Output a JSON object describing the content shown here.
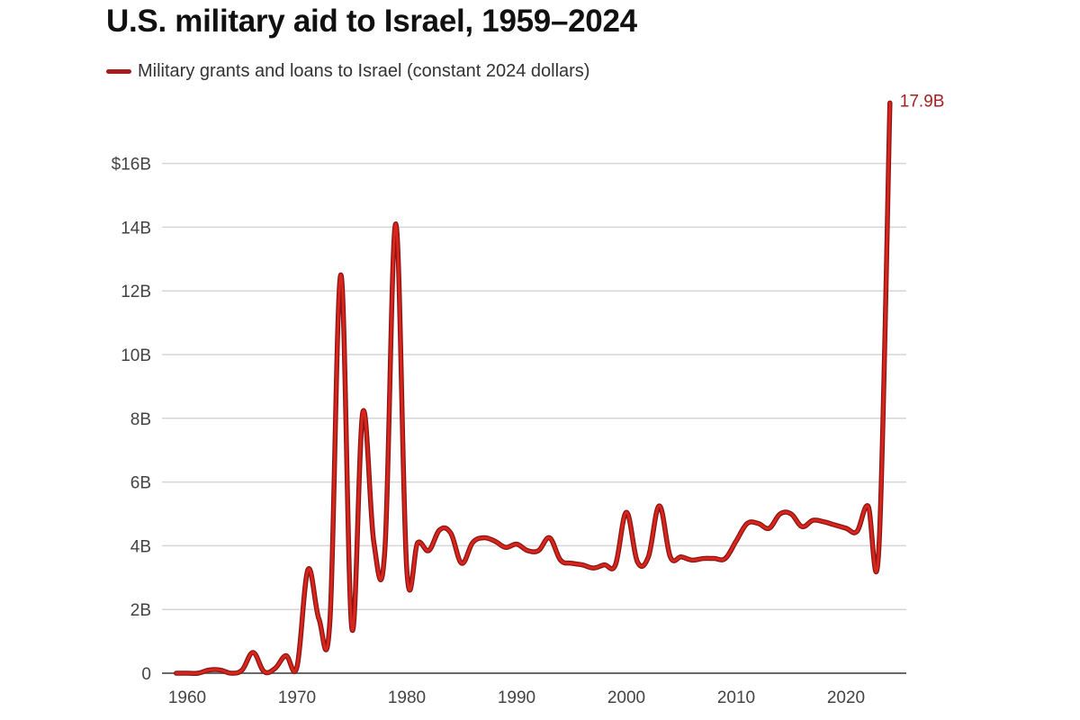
{
  "colors": {
    "line": "#d9261c",
    "line_edge": "#8a1414",
    "legend_swatch": "#a51d1d",
    "end_label": "#a52222",
    "grid": "#d6d6d6",
    "axis": "#555555"
  },
  "chart_data": {
    "type": "line",
    "title": "U.S. military aid to Israel, 1959–2024",
    "xlabel": "",
    "ylabel": "",
    "legend": {
      "position": "top-left",
      "entries": [
        "Military grants and loans to Israel (constant 2024 dollars)"
      ]
    },
    "grid": true,
    "xlim": [
      1959,
      2024
    ],
    "ylim": [
      0,
      16
    ],
    "x_ticks": [
      1960,
      1970,
      1980,
      1990,
      2000,
      2010,
      2020
    ],
    "x_tick_labels": [
      "1960",
      "1970",
      "1980",
      "1990",
      "2000",
      "2010",
      "2020"
    ],
    "y_ticks": [
      0,
      2,
      4,
      6,
      8,
      10,
      12,
      14,
      16
    ],
    "y_tick_labels": [
      "0",
      "2B",
      "4B",
      "6B",
      "8B",
      "10B",
      "12B",
      "14B",
      "$16B"
    ],
    "units": "billions of constant 2024 US dollars",
    "annotations": [
      {
        "x": 2024,
        "y": 17.9,
        "text": "17.9B"
      }
    ],
    "series": [
      {
        "name": "Military grants and loans to Israel (constant 2024 dollars)",
        "x": [
          1959,
          1960,
          1961,
          1962,
          1963,
          1964,
          1965,
          1966,
          1967,
          1968,
          1969,
          1970,
          1971,
          1972,
          1973,
          1974,
          1975,
          1976,
          1977,
          1978,
          1979,
          1980,
          1981,
          1982,
          1983,
          1984,
          1985,
          1986,
          1987,
          1988,
          1989,
          1990,
          1991,
          1992,
          1993,
          1994,
          1995,
          1996,
          1997,
          1998,
          1999,
          2000,
          2001,
          2002,
          2003,
          2004,
          2005,
          2006,
          2007,
          2008,
          2009,
          2010,
          2011,
          2012,
          2013,
          2014,
          2015,
          2016,
          2017,
          2018,
          2019,
          2020,
          2021,
          2022,
          2023,
          2024
        ],
        "values": [
          0,
          0,
          0,
          0.1,
          0.1,
          0,
          0.1,
          0.65,
          0.05,
          0.15,
          0.55,
          0.2,
          3.25,
          1.7,
          1.65,
          12.5,
          1.4,
          8.2,
          4.1,
          3.85,
          14.1,
          3.25,
          4.1,
          3.85,
          4.5,
          4.4,
          3.45,
          4.1,
          4.25,
          4.15,
          3.95,
          4.05,
          3.85,
          3.85,
          4.25,
          3.55,
          3.45,
          3.4,
          3.3,
          3.4,
          3.4,
          5.05,
          3.5,
          3.65,
          5.25,
          3.65,
          3.65,
          3.55,
          3.6,
          3.6,
          3.6,
          4.15,
          4.7,
          4.7,
          4.55,
          5.0,
          5.0,
          4.6,
          4.8,
          4.75,
          4.65,
          4.55,
          4.45,
          5.25,
          3.95,
          17.9
        ]
      }
    ]
  }
}
